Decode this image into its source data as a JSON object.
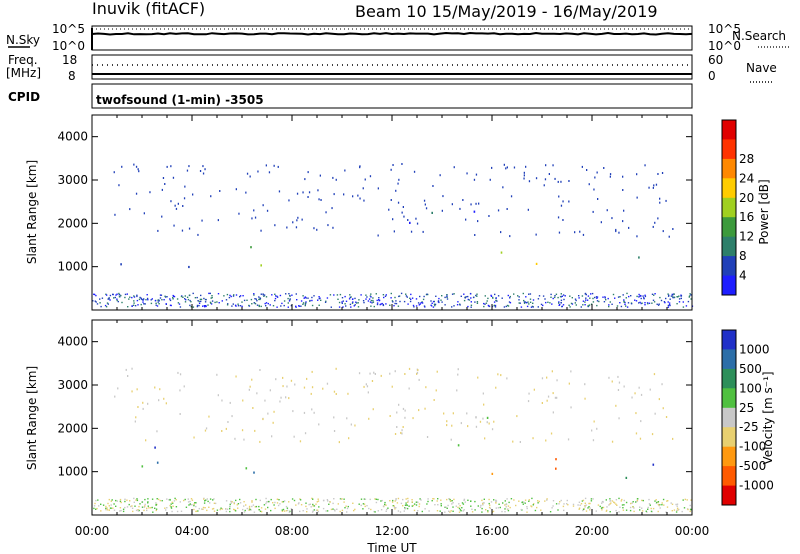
{
  "header": {
    "station": "Inuvik (fitACF)",
    "beam_and_dates": "Beam 10  15/May/2019 - 16/May/2019"
  },
  "top_panels": {
    "nsky_label": "N.Sky",
    "nsky_ticks": [
      "10^5",
      "10^0"
    ],
    "nsearch_label": "N.Search",
    "nsearch_ticks": [
      "10^5",
      "10^0"
    ],
    "freq_label": "Freq.",
    "freq_unit": "[MHz]",
    "freq_ticks": [
      "18",
      "8"
    ],
    "nave_label": "Nave",
    "nave_ticks": [
      "60",
      "0"
    ],
    "cpid_label": "CPID",
    "cpid_value": "twofsound (1-min) -3505"
  },
  "chart_data": [
    {
      "type": "heatmap",
      "name": "power",
      "ylabel": "Slant Range [km]",
      "ylim": [
        0,
        4500
      ],
      "yticks": [
        "1000",
        "2000",
        "3000",
        "4000"
      ],
      "xlim_hours": [
        0,
        24
      ],
      "colorbar_label": "Power [dB]",
      "colorbar_ticks": [
        "4",
        "8",
        "12",
        "16",
        "20",
        "24",
        "28"
      ],
      "colors": [
        "#1e1eff",
        "#2040b8",
        "#2d7f6a",
        "#3c9a3c",
        "#a0d020",
        "#ffcc00",
        "#ff8800",
        "#ff3300",
        "#e00000"
      ],
      "echo_regions": [
        {
          "t0": 0.0,
          "t1": 0.8,
          "r0": 700,
          "r1": 900,
          "level": 0.6
        },
        {
          "t0": 0.8,
          "t1": 4.5,
          "r0": 900,
          "r1": 1300,
          "level": 0.15
        },
        {
          "t0": 4.5,
          "t1": 6.9,
          "r0": 1000,
          "r1": 1700,
          "level": 0.4
        },
        {
          "t0": 10.0,
          "t1": 10.5,
          "r0": 1000,
          "r1": 1300,
          "level": 0.15
        },
        {
          "t0": 12.5,
          "t1": 16.0,
          "r0": 1500,
          "r1": 2300,
          "level": 0.2
        },
        {
          "t0": 15.8,
          "t1": 17.3,
          "r0": 900,
          "r1": 1500,
          "level": 0.45
        },
        {
          "t0": 17.3,
          "t1": 19.8,
          "r0": 900,
          "r1": 1400,
          "level": 0.65
        },
        {
          "t0": 21.2,
          "t1": 22.8,
          "r0": 1000,
          "r1": 1400,
          "level": 0.35
        },
        {
          "t0": 22.8,
          "t1": 24.0,
          "r0": 800,
          "r1": 1150,
          "level": 0.75
        }
      ]
    },
    {
      "type": "heatmap",
      "name": "velocity",
      "ylabel": "Slant Range [km]",
      "ylim": [
        0,
        4500
      ],
      "yticks": [
        "1000",
        "2000",
        "3000",
        "4000"
      ],
      "xlim_hours": [
        0,
        24
      ],
      "xticks": [
        "00:00",
        "04:00",
        "08:00",
        "12:00",
        "16:00",
        "20:00",
        "00:00"
      ],
      "xlabel": "Time UT",
      "colorbar_label": "Velocity [m s⁻¹]",
      "colorbar_ticks": [
        "1000",
        "500",
        "100",
        "25",
        "-25",
        "-100",
        "-500",
        "-1000"
      ],
      "colors": [
        "#2030c8",
        "#2c6ea8",
        "#2d8f5a",
        "#50c040",
        "#c8c8c8",
        "#e8d070",
        "#ff9910",
        "#ff5a00",
        "#e00000"
      ],
      "echo_regions": [
        {
          "t0": 0.0,
          "t1": 0.8,
          "r0": 600,
          "r1": 900,
          "level": 0.15
        },
        {
          "t0": 0.8,
          "t1": 4.5,
          "r0": 900,
          "r1": 1600,
          "level": 0.2
        },
        {
          "t0": 4.5,
          "t1": 6.9,
          "r0": 1000,
          "r1": 1700,
          "level": 0.25
        },
        {
          "t0": 12.5,
          "t1": 16.0,
          "r0": 1500,
          "r1": 2300,
          "level": 0.5
        },
        {
          "t0": 15.8,
          "t1": 17.3,
          "r0": 900,
          "r1": 1500,
          "level": 0.6
        },
        {
          "t0": 17.3,
          "t1": 19.8,
          "r0": 900,
          "r1": 1500,
          "level": 0.8
        },
        {
          "t0": 21.2,
          "t1": 24.0,
          "r0": 800,
          "r1": 1400,
          "level": 0.15
        }
      ]
    }
  ]
}
